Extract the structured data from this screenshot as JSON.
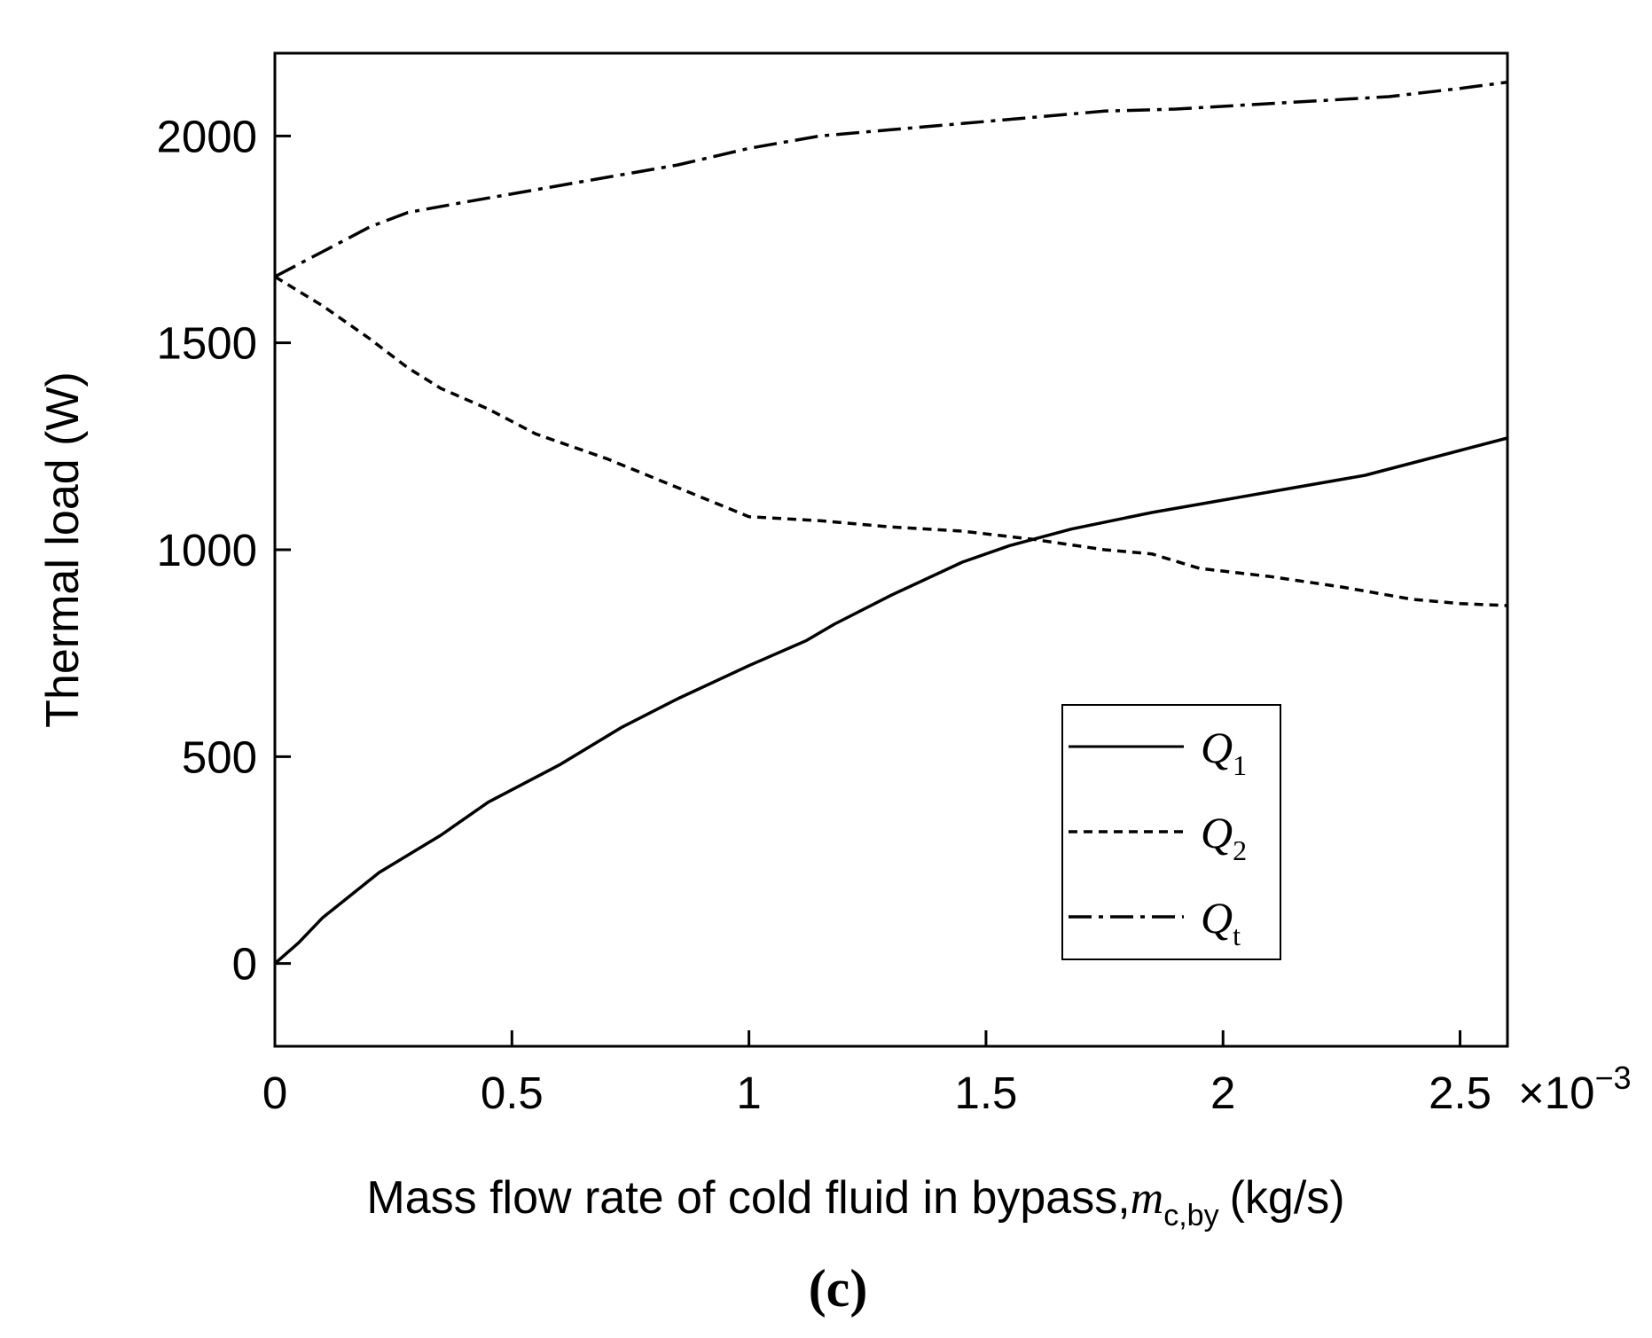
{
  "chart_data": {
    "type": "line",
    "title": "",
    "xlabel": "Mass flow rate of cold fluid in bypass,",
    "xlabel_symbol": "m",
    "xlabel_symbol_sub": "c,by",
    "xlabel_units": "(kg/s)",
    "ylabel": "Thermal load (W)",
    "x_multiplier_label": "×10",
    "x_multiplier_exp": "−3",
    "panel_label": "(c)",
    "xlim": [
      0,
      2.6
    ],
    "ylim": [
      -200,
      2200
    ],
    "x_ticks": [
      0,
      0.5,
      1,
      1.5,
      2,
      2.5
    ],
    "x_tick_labels": [
      "0",
      "0.5",
      "1",
      "1.5",
      "2",
      "2.5"
    ],
    "y_ticks": [
      0,
      500,
      1000,
      1500,
      2000
    ],
    "y_tick_labels": [
      "0",
      "500",
      "1000",
      "1500",
      "2000"
    ],
    "legend_position": "lower-right",
    "series": [
      {
        "name": "Q",
        "name_sub": "1",
        "dash": "solid",
        "x": [
          0,
          0.05,
          0.1,
          0.22,
          0.35,
          0.45,
          0.6,
          0.73,
          0.85,
          1.0,
          1.12,
          1.18,
          1.3,
          1.45,
          1.55,
          1.68,
          1.85,
          2.0,
          2.15,
          2.3,
          2.4,
          2.5,
          2.6
        ],
        "values": [
          0,
          50,
          110,
          220,
          310,
          390,
          480,
          570,
          640,
          720,
          780,
          820,
          890,
          970,
          1010,
          1050,
          1090,
          1120,
          1150,
          1180,
          1210,
          1240,
          1270
        ]
      },
      {
        "name": "Q",
        "name_sub": "2",
        "dash": "dashed",
        "x": [
          0,
          0.1,
          0.2,
          0.28,
          0.35,
          0.45,
          0.55,
          0.7,
          0.85,
          1.0,
          1.15,
          1.3,
          1.45,
          1.6,
          1.75,
          1.85,
          1.95,
          2.1,
          2.25,
          2.4,
          2.5,
          2.6
        ],
        "values": [
          1660,
          1590,
          1510,
          1440,
          1390,
          1340,
          1280,
          1220,
          1150,
          1080,
          1070,
          1055,
          1045,
          1025,
          1000,
          990,
          955,
          935,
          910,
          880,
          870,
          865
        ]
      },
      {
        "name": "Q",
        "name_sub": "t",
        "dash": "dashdot",
        "x": [
          0,
          0.1,
          0.2,
          0.28,
          0.4,
          0.55,
          0.7,
          0.85,
          1.0,
          1.15,
          1.3,
          1.45,
          1.6,
          1.75,
          1.9,
          2.05,
          2.2,
          2.35,
          2.5,
          2.6
        ],
        "values": [
          1660,
          1720,
          1780,
          1815,
          1840,
          1870,
          1900,
          1930,
          1970,
          2000,
          2015,
          2030,
          2045,
          2060,
          2065,
          2075,
          2085,
          2095,
          2115,
          2130
        ]
      }
    ]
  }
}
